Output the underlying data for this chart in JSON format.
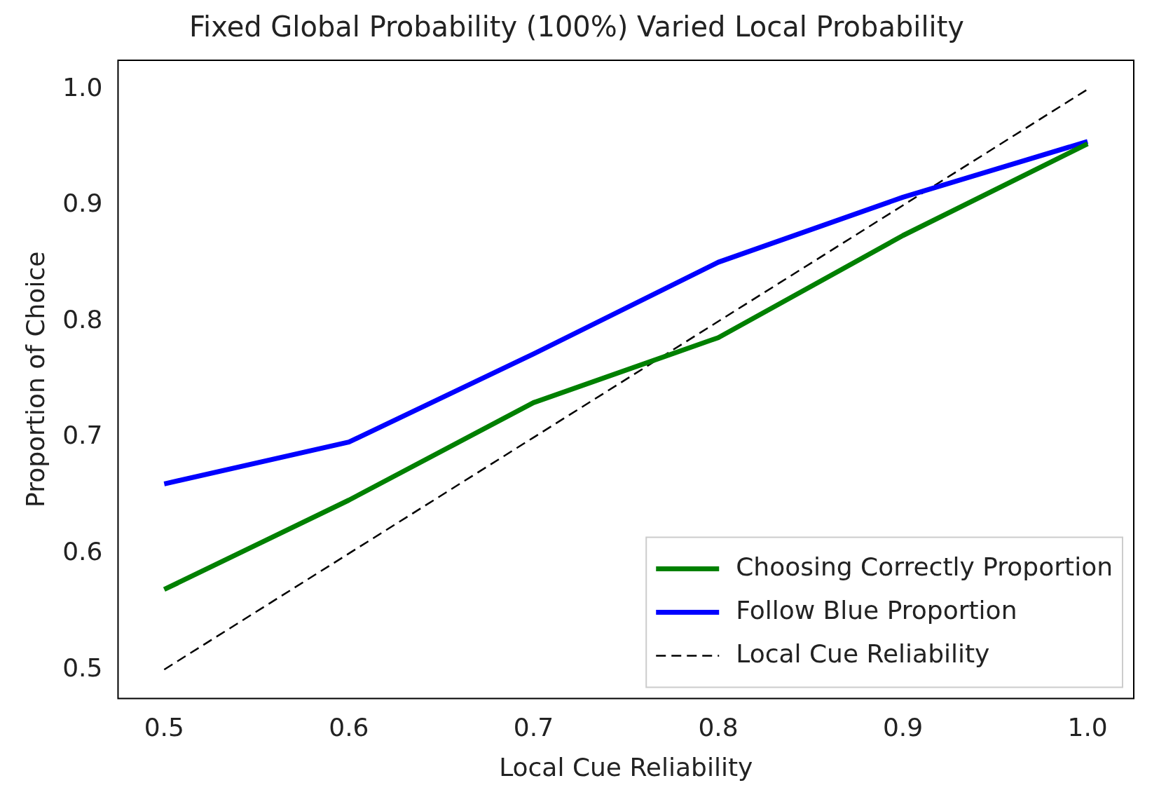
{
  "chart_data": {
    "type": "line",
    "title": "Fixed Global Probability (100%) Varied Local Probability",
    "xlabel": "Local Cue Reliability",
    "ylabel": "Proportion of Choice",
    "x": [
      0.5,
      0.6,
      0.7,
      0.8,
      0.9,
      1.0
    ],
    "series": [
      {
        "name": "Choosing Correctly Proportion",
        "color": "#008000",
        "values": [
          0.569,
          0.646,
          0.73,
          0.786,
          0.874,
          0.953
        ]
      },
      {
        "name": "Follow Blue Proportion",
        "color": "#0000ff",
        "values": [
          0.66,
          0.696,
          0.772,
          0.851,
          0.907,
          0.955
        ]
      },
      {
        "name": "Local Cue Reliability",
        "color": "#000000",
        "line_style": "dashed",
        "values": [
          0.5,
          0.6,
          0.7,
          0.8,
          0.9,
          1.0
        ]
      }
    ],
    "xlim": [
      0.475,
      1.025
    ],
    "xticks": [
      0.5,
      0.6,
      0.7,
      0.8,
      0.9,
      {
        "value": 1,
        "label": "1.0"
      }
    ],
    "ylim": [
      0.475,
      1.025
    ],
    "yticks": [
      0.5,
      0.6,
      0.7,
      0.8,
      0.9,
      {
        "value": 1,
        "label": "1.0"
      }
    ],
    "grid": false,
    "legend": "bottom right",
    "marker": "none",
    "line_style": "solid"
  }
}
